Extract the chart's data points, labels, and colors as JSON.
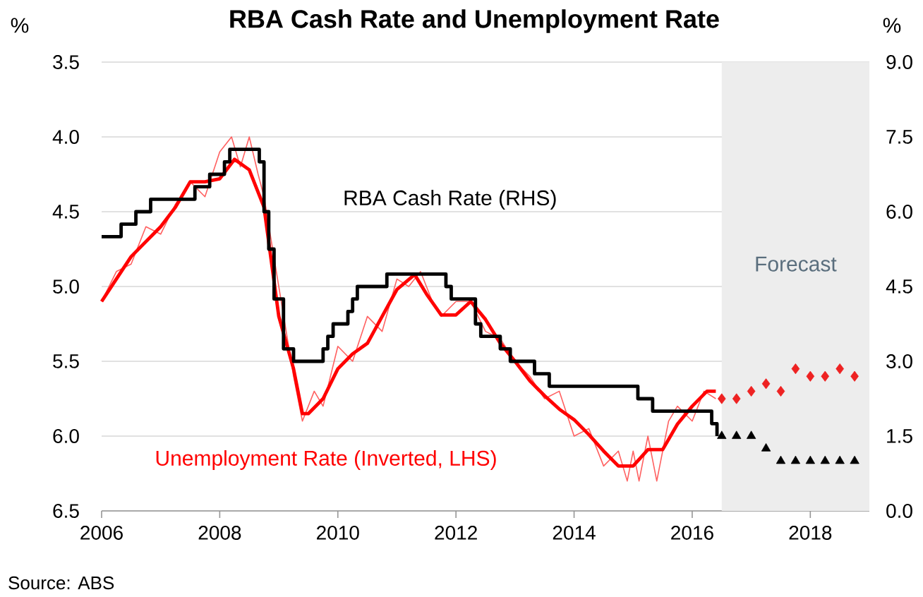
{
  "chart_data": {
    "type": "line",
    "title": "RBA Cash Rate and Unemployment Rate",
    "ylabel": "%",
    "y2label": "%",
    "xlim": [
      2006,
      2019
    ],
    "xticks": [
      2006,
      2008,
      2010,
      2012,
      2014,
      2016,
      2018
    ],
    "ylim": [
      6.5,
      3.5
    ],
    "yticks": [
      3.5,
      {
        "value": 4,
        "label": "4.0"
      },
      4.5,
      {
        "value": 5,
        "label": "5.0"
      },
      5.5,
      {
        "value": 6,
        "label": "6.0"
      },
      6.5
    ],
    "y2lim": [
      0,
      9
    ],
    "y2ticks": [
      {
        "value": 0,
        "label": "0.0"
      },
      1.5,
      {
        "value": 3,
        "label": "3.0"
      },
      4.5,
      {
        "value": 6,
        "label": "6.0"
      },
      7.5,
      {
        "value": 9,
        "label": "9.0"
      }
    ],
    "grid": "y",
    "bands": [
      {
        "axis": "x",
        "from": 2016.5,
        "to": 2019,
        "label": "Forecast",
        "color": "#ededed"
      }
    ],
    "annotations": [
      "Source: ABS"
    ],
    "series": [
      {
        "color": "#ff6060",
        "x": [
          2006.0,
          2006.25,
          2006.5,
          2006.75,
          2007.0,
          2007.25,
          2007.5,
          2007.75,
          2008.0,
          2008.2,
          2008.35,
          2008.5,
          2008.65,
          2008.75,
          2009.0,
          2009.25,
          2009.4,
          2009.6,
          2009.75,
          2010.0,
          2010.25,
          2010.5,
          2010.75,
          2011.0,
          2011.2,
          2011.4,
          2011.6,
          2011.75,
          2012.0,
          2012.25,
          2012.5,
          2012.75,
          2013.0,
          2013.25,
          2013.5,
          2013.75,
          2014.0,
          2014.25,
          2014.5,
          2014.75,
          2014.9,
          2015.0,
          2015.1,
          2015.25,
          2015.4,
          2015.6,
          2015.75,
          2016.0,
          2016.2,
          2016.4
        ],
        "values": [
          5.1,
          4.9,
          4.85,
          4.6,
          4.65,
          4.45,
          4.3,
          4.4,
          4.1,
          4.0,
          4.2,
          4.0,
          4.25,
          4.4,
          5.0,
          5.6,
          5.9,
          5.7,
          5.8,
          5.4,
          5.5,
          5.2,
          5.3,
          4.95,
          5.0,
          4.9,
          5.1,
          5.2,
          5.1,
          5.1,
          5.3,
          5.35,
          5.5,
          5.6,
          5.75,
          5.7,
          6.0,
          5.95,
          6.2,
          6.1,
          6.3,
          6.1,
          6.3,
          6.0,
          6.3,
          5.9,
          5.8,
          5.9,
          5.7,
          5.75
        ]
      },
      {
        "name": "Unemployment Rate (Inverted, LHS)",
        "color": "#ff0000",
        "x": [
          2006.0,
          2006.25,
          2006.5,
          2006.75,
          2007.0,
          2007.25,
          2007.5,
          2007.75,
          2008.0,
          2008.25,
          2008.5,
          2008.75,
          2009.0,
          2009.25,
          2009.4,
          2009.5,
          2009.75,
          2010.0,
          2010.25,
          2010.5,
          2010.75,
          2011.0,
          2011.3,
          2011.5,
          2011.75,
          2012.0,
          2012.25,
          2012.5,
          2012.75,
          2013.0,
          2013.25,
          2013.5,
          2013.75,
          2014.0,
          2014.25,
          2014.5,
          2014.75,
          2015.0,
          2015.25,
          2015.5,
          2015.75,
          2016.0,
          2016.25,
          2016.4
        ],
        "values": [
          5.1,
          4.95,
          4.8,
          4.7,
          4.6,
          4.47,
          4.3,
          4.3,
          4.28,
          4.15,
          4.22,
          4.47,
          5.2,
          5.55,
          5.85,
          5.85,
          5.75,
          5.55,
          5.45,
          5.38,
          5.2,
          5.02,
          4.92,
          5.05,
          5.19,
          5.19,
          5.1,
          5.22,
          5.38,
          5.5,
          5.63,
          5.73,
          5.82,
          5.89,
          5.99,
          6.1,
          6.2,
          6.2,
          6.09,
          6.09,
          5.92,
          5.8,
          5.7,
          5.7
        ]
      },
      {
        "type": "step",
        "axis": "y2",
        "name": "RBA Cash Rate (RHS)",
        "color": "#000000",
        "x": [
          2006.0,
          2006.33,
          2006.58,
          2006.83,
          2007.58,
          2007.83,
          2008.08,
          2008.17,
          2008.67,
          2008.75,
          2008.83,
          2008.92,
          2009.08,
          2009.25,
          2009.75,
          2009.83,
          2009.92,
          2010.17,
          2010.25,
          2010.33,
          2010.83,
          2011.83,
          2011.92,
          2012.33,
          2012.42,
          2012.75,
          2012.92,
          2013.33,
          2013.58,
          2015.08,
          2015.33,
          2016.33,
          2016.42
        ],
        "values": [
          5.5,
          5.75,
          6.0,
          6.25,
          6.5,
          6.75,
          7.0,
          7.25,
          7.0,
          6.0,
          5.25,
          4.25,
          3.25,
          3.0,
          3.25,
          3.5,
          3.75,
          4.0,
          4.25,
          4.5,
          4.75,
          4.5,
          4.25,
          3.75,
          3.5,
          3.25,
          3.0,
          2.75,
          2.5,
          2.25,
          2.0,
          1.75,
          1.5
        ]
      },
      {
        "type": "scatter",
        "axis": "y2",
        "marker": "triangle",
        "color": "#000000",
        "x": [
          2016.5,
          2016.75,
          2017.0,
          2017.25,
          2017.5,
          2017.75,
          2018.0,
          2018.25,
          2018.5,
          2018.75
        ],
        "values": [
          1.5,
          1.5,
          1.5,
          1.25,
          1.0,
          1.0,
          1.0,
          1.0,
          1.0,
          1.0
        ]
      },
      {
        "type": "scatter",
        "marker": "diamond",
        "color": "#ee2222",
        "x": [
          2016.5,
          2016.75,
          2017.0,
          2017.25,
          2017.5,
          2017.75,
          2018.0,
          2018.25,
          2018.5,
          2018.75
        ],
        "values": [
          5.75,
          5.75,
          5.7,
          5.65,
          5.7,
          5.55,
          5.6,
          5.6,
          5.55,
          5.6
        ]
      }
    ]
  }
}
